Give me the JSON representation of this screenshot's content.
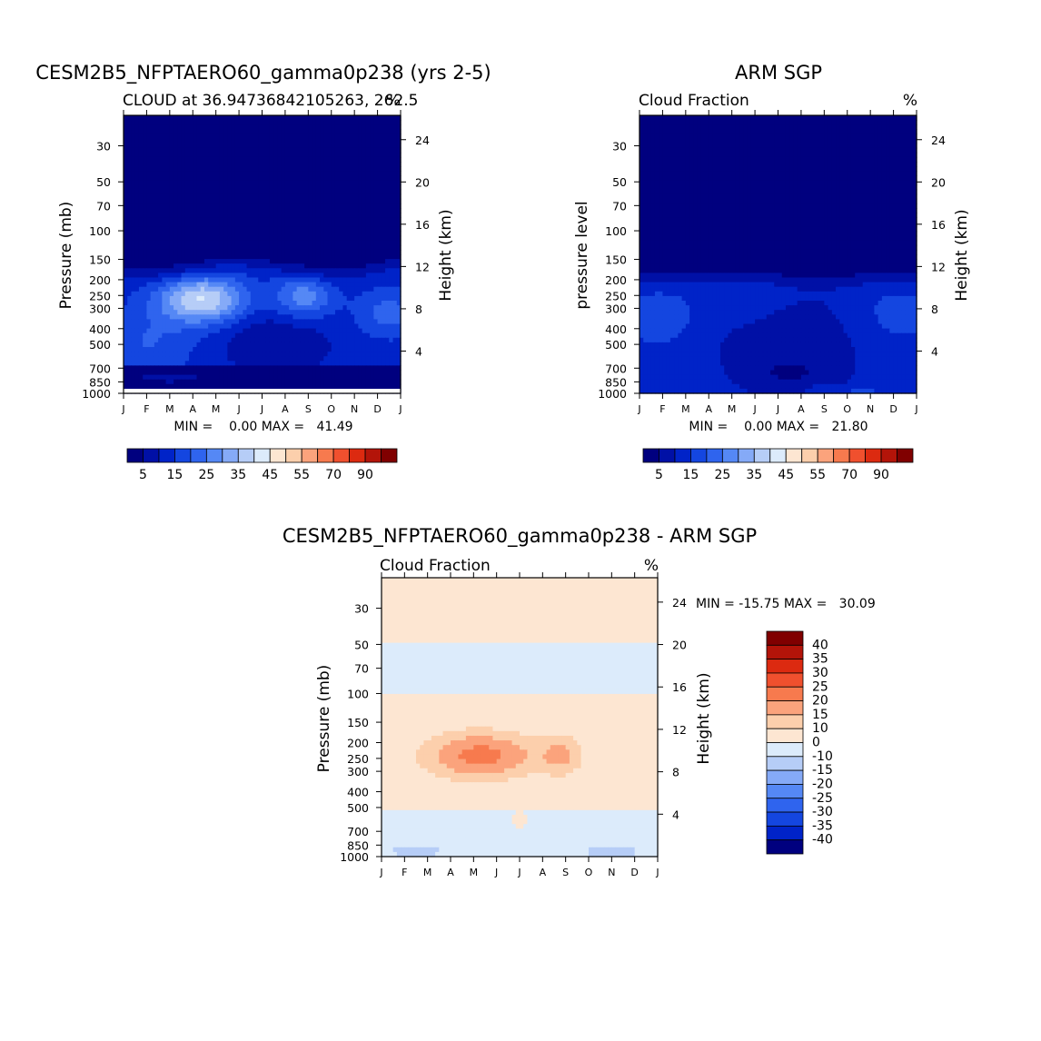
{
  "figure": {
    "months": [
      "J",
      "F",
      "M",
      "A",
      "M",
      "J",
      "J",
      "A",
      "S",
      "O",
      "N",
      "D",
      "J"
    ]
  },
  "chart_data": [
    {
      "type": "heatmap",
      "id": "model",
      "title": "CESM2B5_NFPTAERO60_gamma0p238 (yrs 2-5)",
      "subtitle_left": "CLOUD at 36.94736842105263, 262.5",
      "subtitle_right": "%",
      "ylabel": "Pressure (mb)",
      "ylabel_right": "Height (km)",
      "x_ticklabels": [
        "J",
        "F",
        "M",
        "A",
        "M",
        "J",
        "J",
        "A",
        "S",
        "O",
        "N",
        "D",
        "J"
      ],
      "p_ticks": [
        30,
        50,
        70,
        100,
        150,
        200,
        250,
        300,
        400,
        500,
        700,
        850,
        1000
      ],
      "z_ticks": [
        4,
        8,
        12,
        16,
        20,
        24
      ],
      "stats": "MIN =    0.00 MAX =   41.49",
      "min": 0.0,
      "max": 41.49,
      "field": "cloud_model",
      "colorbar": {
        "orientation": "horizontal",
        "labels": [
          "5",
          "15",
          "25",
          "35",
          "45",
          "55",
          "70",
          "90"
        ],
        "colors": [
          "#00007f",
          "#0010a6",
          "#0023c8",
          "#1446e0",
          "#2f64ee",
          "#5588f5",
          "#85aaf7",
          "#b6cdf7",
          "#dcebfb",
          "#fde6d2",
          "#fccfac",
          "#fba37c",
          "#f77a4e",
          "#f0502e",
          "#dc2a10",
          "#b31409",
          "#800000"
        ]
      }
    },
    {
      "type": "heatmap",
      "id": "obs",
      "title": "ARM SGP",
      "subtitle_left": "Cloud Fraction",
      "subtitle_right": "%",
      "ylabel": "pressure level",
      "ylabel_right": "Height (km)",
      "x_ticklabels": [
        "J",
        "F",
        "M",
        "A",
        "M",
        "J",
        "J",
        "A",
        "S",
        "O",
        "N",
        "D",
        "J"
      ],
      "p_ticks": [
        30,
        50,
        70,
        100,
        150,
        200,
        250,
        300,
        400,
        500,
        700,
        850,
        1000
      ],
      "z_ticks": [
        4,
        8,
        12,
        16,
        20,
        24
      ],
      "stats": "MIN =    0.00 MAX =   21.80",
      "min": 0.0,
      "max": 21.8,
      "field": "cloud_obs",
      "colorbar": {
        "orientation": "horizontal",
        "labels": [
          "5",
          "15",
          "25",
          "35",
          "45",
          "55",
          "70",
          "90"
        ],
        "colors": [
          "#00007f",
          "#0010a6",
          "#0023c8",
          "#1446e0",
          "#2f64ee",
          "#5588f5",
          "#85aaf7",
          "#b6cdf7",
          "#dcebfb",
          "#fde6d2",
          "#fccfac",
          "#fba37c",
          "#f77a4e",
          "#f0502e",
          "#dc2a10",
          "#b31409",
          "#800000"
        ]
      }
    },
    {
      "type": "heatmap",
      "id": "diff",
      "title": "CESM2B5_NFPTAERO60_gamma0p238 - ARM SGP",
      "subtitle_left": "Cloud Fraction",
      "subtitle_right": "%",
      "ylabel": "Pressure (mb)",
      "ylabel_right": "Height (km)",
      "x_ticklabels": [
        "J",
        "F",
        "M",
        "A",
        "M",
        "J",
        "J",
        "A",
        "S",
        "O",
        "N",
        "D",
        "J"
      ],
      "p_ticks": [
        30,
        50,
        70,
        100,
        150,
        200,
        250,
        300,
        400,
        500,
        700,
        850,
        1000
      ],
      "z_ticks": [
        4,
        8,
        12,
        16,
        20,
        24
      ],
      "stats": "MIN = -15.75 MAX =   30.09",
      "min": -15.75,
      "max": 30.09,
      "field": "cloud_diff",
      "colorbar": {
        "orientation": "vertical",
        "labels": [
          "40",
          "35",
          "30",
          "25",
          "20",
          "15",
          "10",
          "0",
          "-10",
          "-15",
          "-20",
          "-25",
          "-30",
          "-35",
          "-40"
        ],
        "colors": [
          "#800000",
          "#b31409",
          "#dc2a10",
          "#f0502e",
          "#f77a4e",
          "#fba37c",
          "#fccfac",
          "#fde6d2",
          "#dcebfb",
          "#b6cdf7",
          "#85aaf7",
          "#5588f5",
          "#2f64ee",
          "#1446e0",
          "#0023c8",
          "#00007f"
        ]
      }
    }
  ]
}
